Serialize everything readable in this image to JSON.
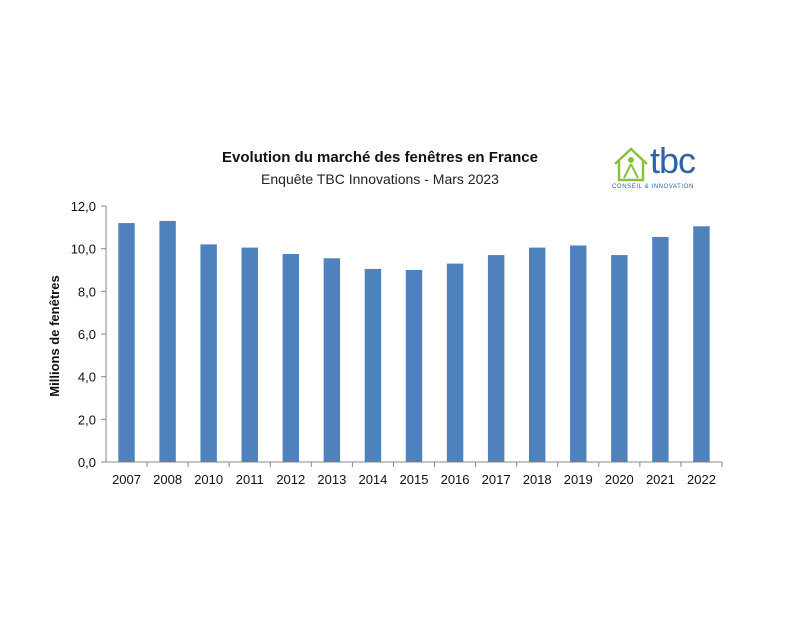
{
  "chart_data": {
    "type": "bar",
    "title": "Evolution du marché des fenêtres en France",
    "subtitle": "Enquête TBC Innovations - Mars 2023",
    "xlabel": "",
    "ylabel": "Millions de fenêtres",
    "categories": [
      "2007",
      "2008",
      "2010",
      "2011",
      "2012",
      "2013",
      "2014",
      "2015",
      "2016",
      "2017",
      "2018",
      "2019",
      "2020",
      "2021",
      "2022"
    ],
    "values": [
      11.2,
      11.3,
      10.2,
      10.05,
      9.75,
      9.55,
      9.05,
      9.0,
      9.3,
      9.7,
      10.05,
      10.15,
      9.7,
      10.55,
      11.05
    ],
    "ylim": [
      0,
      12
    ],
    "yticks": [
      "0,0",
      "2,0",
      "4,0",
      "6,0",
      "8,0",
      "10,0",
      "12,0"
    ],
    "grid": false,
    "legend": "none",
    "bar_color": "#4f81bd"
  },
  "logo": {
    "text": "tbc",
    "tagline": "CONSEIL & INNOVATION",
    "icon": "house-person-icon",
    "color": "#2f63a3",
    "icon_color": "#8cbf3f"
  }
}
